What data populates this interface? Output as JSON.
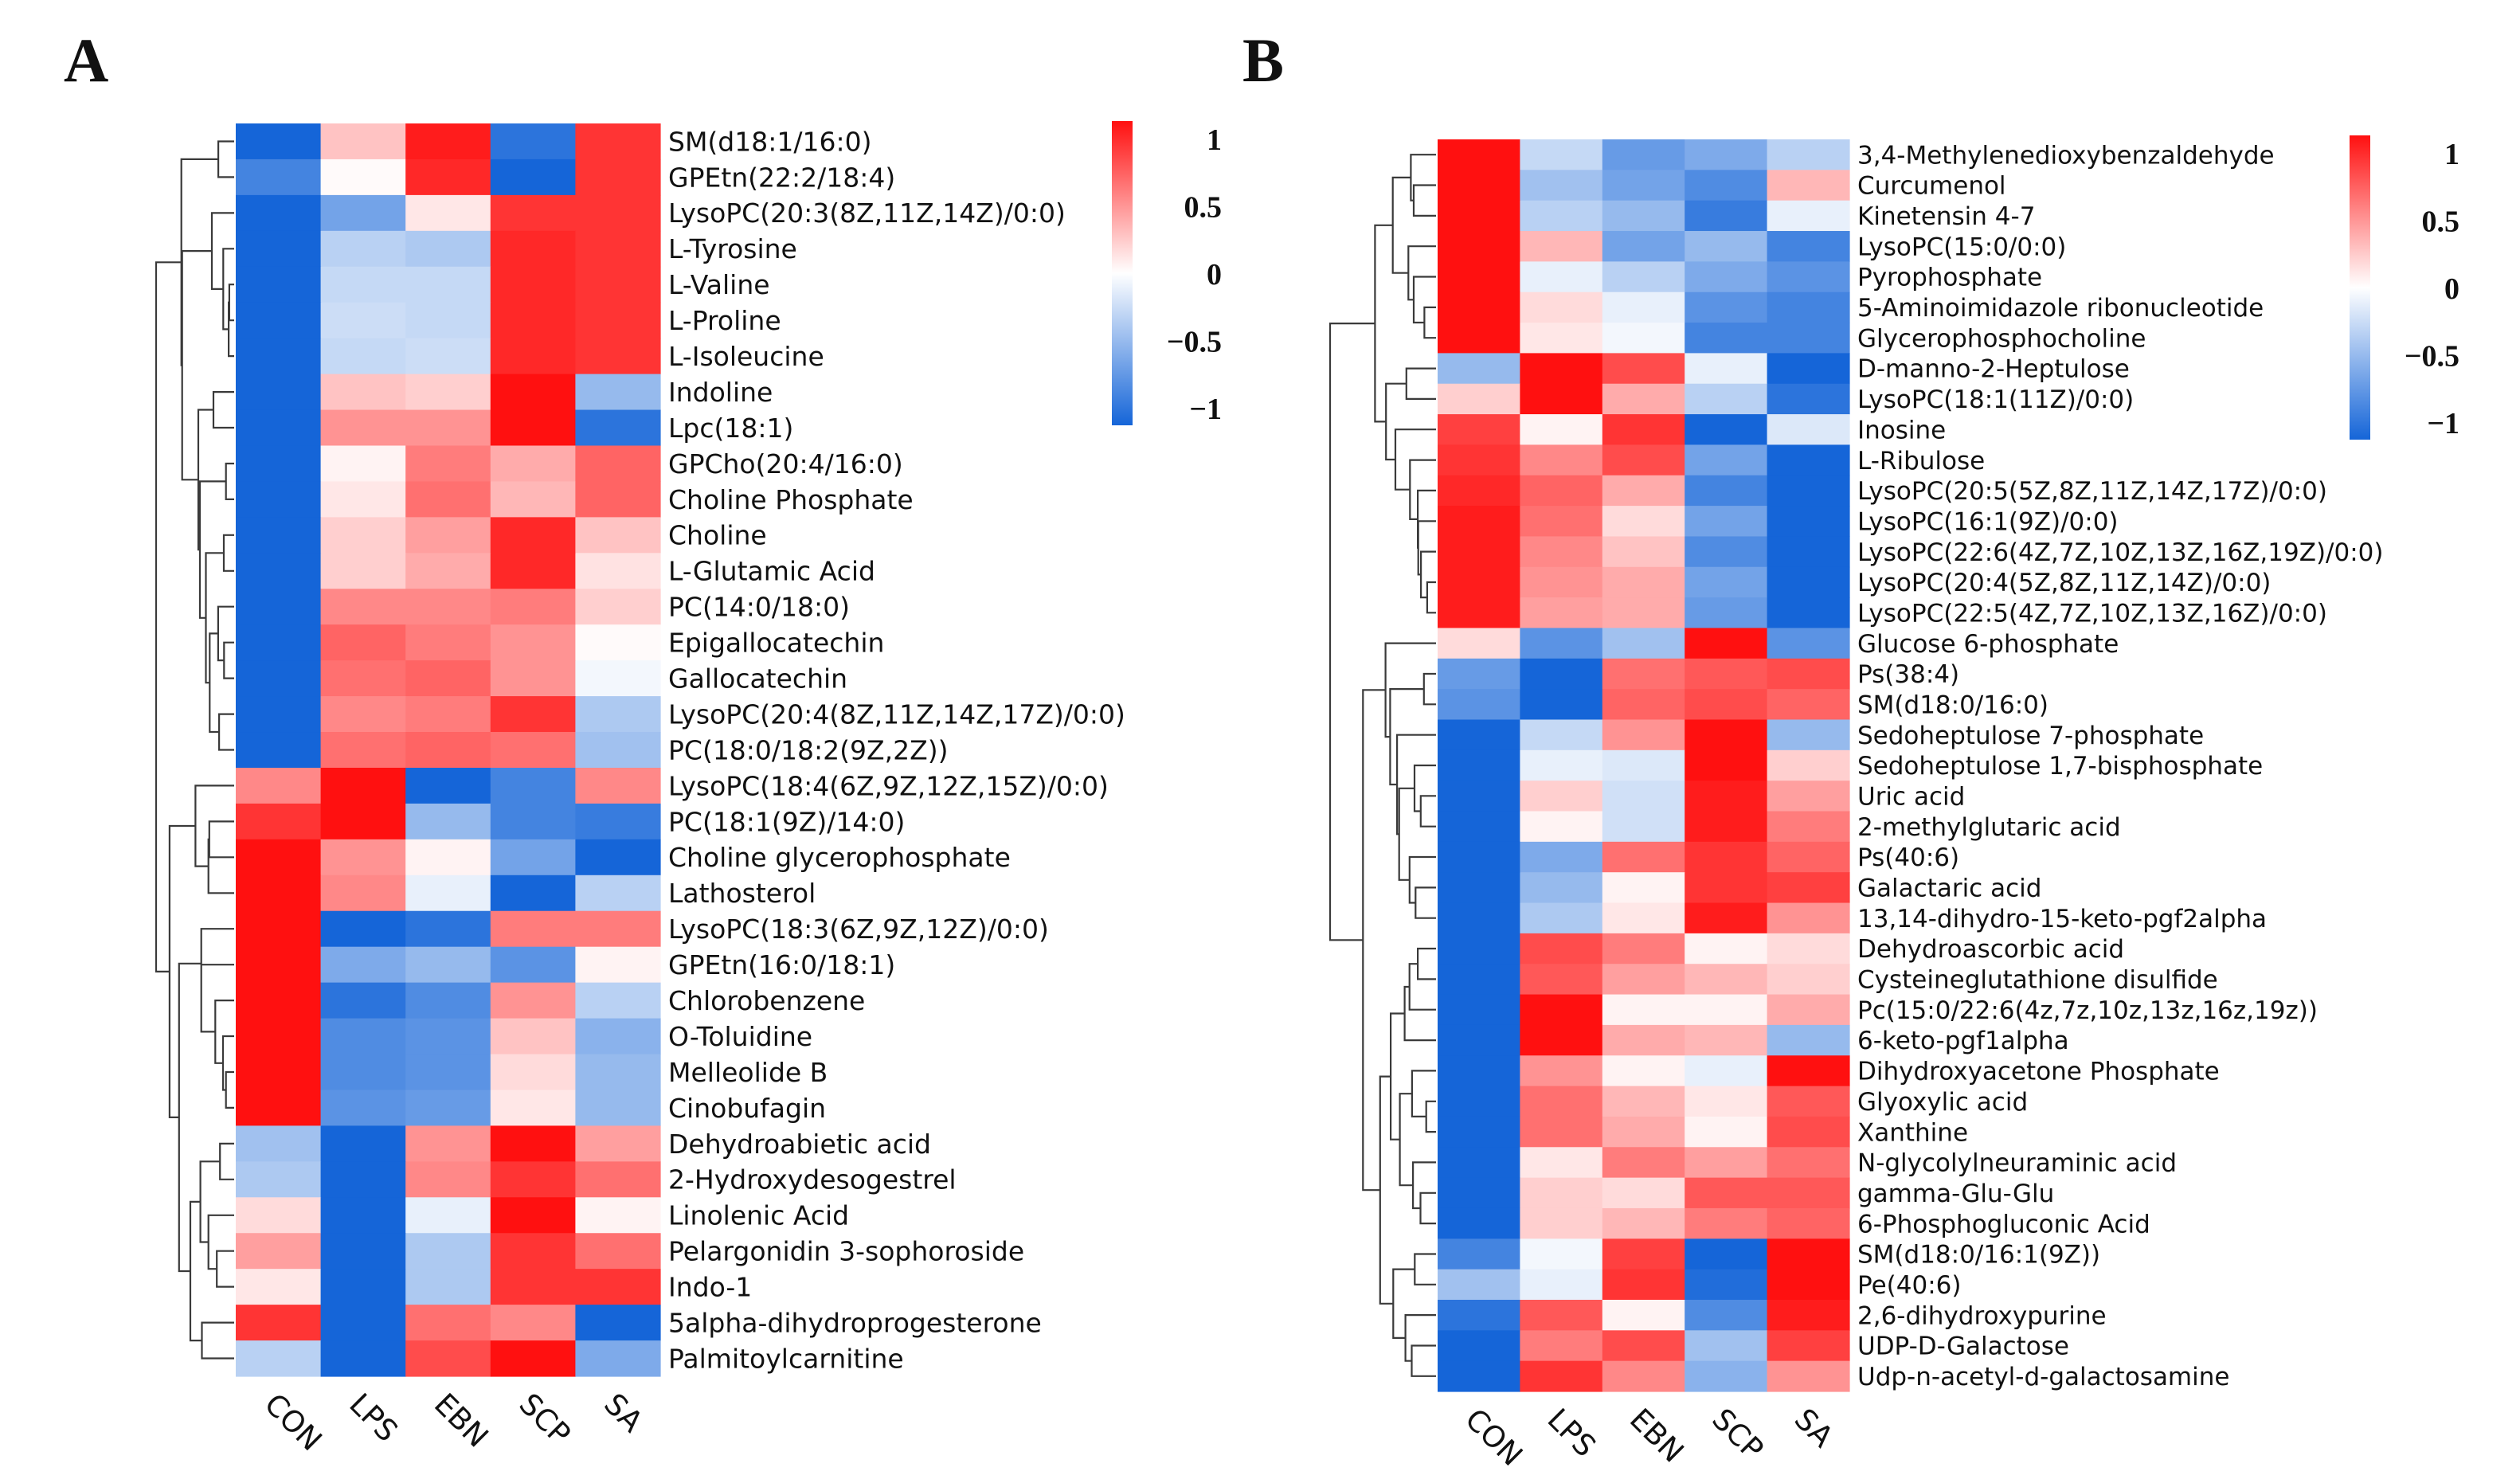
{
  "chart_data": [
    {
      "type": "heatmap",
      "panel": "A",
      "columns": [
        "CON",
        "LPS",
        "EBN",
        "SCP",
        "SA"
      ],
      "colorbar": {
        "range": [
          -1,
          1
        ],
        "ticks": [
          "1",
          "0.5",
          "0",
          "−0.5",
          "−1"
        ],
        "low_color": "#1565d8",
        "mid_color": "#ffffff",
        "high_color": "#ff1010"
      },
      "rows": [
        {
          "label": "SM(d18:1/16:0)",
          "values": [
            -1.0,
            0.25,
            0.95,
            -0.9,
            0.85
          ]
        },
        {
          "label": "GPEtn(22:2/18:4)",
          "values": [
            -0.8,
            0.02,
            0.9,
            -1.0,
            0.85
          ]
        },
        {
          "label": "LysoPC(20:3(8Z,11Z,14Z)/0:0)",
          "values": [
            -1.0,
            -0.6,
            0.1,
            0.85,
            0.85
          ]
        },
        {
          "label": "L-Tyrosine",
          "values": [
            -1.0,
            -0.3,
            -0.35,
            0.9,
            0.85
          ]
        },
        {
          "label": "L-Valine",
          "values": [
            -1.0,
            -0.25,
            -0.25,
            0.9,
            0.85
          ]
        },
        {
          "label": "L-Proline",
          "values": [
            -1.0,
            -0.22,
            -0.25,
            0.9,
            0.85
          ]
        },
        {
          "label": "L-Isoleucine",
          "values": [
            -1.0,
            -0.25,
            -0.22,
            0.9,
            0.85
          ]
        },
        {
          "label": "Indoline",
          "values": [
            -1.0,
            0.25,
            0.2,
            1.0,
            -0.45
          ]
        },
        {
          "label": "Lpc(18:1)",
          "values": [
            -1.0,
            0.45,
            0.45,
            1.0,
            -0.9
          ]
        },
        {
          "label": "GPCho(20:4/16:0)",
          "values": [
            -1.0,
            0.05,
            0.55,
            0.35,
            0.65
          ]
        },
        {
          "label": "Choline Phosphate",
          "values": [
            -1.0,
            0.1,
            0.6,
            0.3,
            0.65
          ]
        },
        {
          "label": "Choline",
          "values": [
            -1.0,
            0.2,
            0.4,
            0.9,
            0.25
          ]
        },
        {
          "label": "L-Glutamic Acid",
          "values": [
            -1.0,
            0.2,
            0.35,
            0.9,
            0.12
          ]
        },
        {
          "label": "PC(14:0/18:0)",
          "values": [
            -1.0,
            0.5,
            0.5,
            0.55,
            0.2
          ]
        },
        {
          "label": "Epigallocatechin",
          "values": [
            -1.0,
            0.65,
            0.55,
            0.45,
            0.02
          ]
        },
        {
          "label": "Gallocatechin",
          "values": [
            -1.0,
            0.6,
            0.65,
            0.45,
            -0.05
          ]
        },
        {
          "label": "LysoPC(20:4(8Z,11Z,14Z,17Z)/0:0)",
          "values": [
            -1.0,
            0.5,
            0.55,
            0.85,
            -0.35
          ]
        },
        {
          "label": "PC(18:0/18:2(9Z,2Z))",
          "values": [
            -1.0,
            0.6,
            0.65,
            0.6,
            -0.4
          ]
        },
        {
          "label": "LysoPC(18:4(6Z,9Z,12Z,15Z)/0:0)",
          "values": [
            0.5,
            1.0,
            -1.0,
            -0.8,
            0.5
          ]
        },
        {
          "label": "PC(18:1(9Z)/14:0)",
          "values": [
            0.85,
            1.0,
            -0.45,
            -0.8,
            -0.85
          ]
        },
        {
          "label": "Choline glycerophosphate",
          "values": [
            1.0,
            0.45,
            0.05,
            -0.6,
            -1.0
          ]
        },
        {
          "label": "Lathosterol",
          "values": [
            1.0,
            0.5,
            -0.1,
            -1.0,
            -0.3
          ]
        },
        {
          "label": "LysoPC(18:3(6Z,9Z,12Z)/0:0)",
          "values": [
            1.0,
            -1.0,
            -0.9,
            0.55,
            0.55
          ]
        },
        {
          "label": "GPEtn(16:0/18:1)",
          "values": [
            1.0,
            -0.55,
            -0.45,
            -0.7,
            0.05
          ]
        },
        {
          "label": "Chlorobenzene",
          "values": [
            1.0,
            -0.9,
            -0.75,
            0.45,
            -0.3
          ]
        },
        {
          "label": "O-Toluidine",
          "values": [
            1.0,
            -0.75,
            -0.7,
            0.25,
            -0.5
          ]
        },
        {
          "label": "Melleolide B",
          "values": [
            1.0,
            -0.75,
            -0.7,
            0.15,
            -0.45
          ]
        },
        {
          "label": "Cinobufagin",
          "values": [
            1.0,
            -0.7,
            -0.65,
            0.1,
            -0.45
          ]
        },
        {
          "label": "Dehydroabietic acid",
          "values": [
            -0.4,
            -1.0,
            0.45,
            1.0,
            0.4
          ]
        },
        {
          "label": "2-Hydroxydesogestrel",
          "values": [
            -0.35,
            -1.0,
            0.5,
            0.85,
            0.6
          ]
        },
        {
          "label": "Linolenic Acid",
          "values": [
            0.15,
            -1.0,
            -0.1,
            1.0,
            0.05
          ]
        },
        {
          "label": "Pelargonidin 3-sophoroside",
          "values": [
            0.4,
            -1.0,
            -0.35,
            0.85,
            0.6
          ]
        },
        {
          "label": "Indo-1",
          "values": [
            0.1,
            -1.0,
            -0.35,
            0.85,
            0.85
          ]
        },
        {
          "label": "5alpha-dihydroprogesterone",
          "values": [
            0.85,
            -1.0,
            0.6,
            0.5,
            -1.0
          ]
        },
        {
          "label": "Palmitoylcarnitine",
          "values": [
            -0.3,
            -1.0,
            0.75,
            1.0,
            -0.55
          ]
        }
      ]
    },
    {
      "type": "heatmap",
      "panel": "B",
      "columns": [
        "CON",
        "LPS",
        "EBN",
        "SCP",
        "SA"
      ],
      "colorbar": {
        "range": [
          -1,
          1
        ],
        "ticks": [
          "1",
          "0.5",
          "0",
          "−0.5",
          "−1"
        ],
        "low_color": "#1565d8",
        "mid_color": "#ffffff",
        "high_color": "#ff1010"
      },
      "rows": [
        {
          "label": "3,4-Methylenedioxybenzaldehyde",
          "values": [
            1.0,
            -0.25,
            -0.65,
            -0.55,
            -0.3
          ]
        },
        {
          "label": "Curcumenol",
          "values": [
            1.0,
            -0.4,
            -0.6,
            -0.75,
            0.3
          ]
        },
        {
          "label": "Kinetensin 4-7",
          "values": [
            1.0,
            -0.3,
            -0.45,
            -0.85,
            -0.1
          ]
        },
        {
          "label": "LysoPC(15:0/0:0)",
          "values": [
            1.0,
            0.3,
            -0.6,
            -0.45,
            -0.8
          ]
        },
        {
          "label": "Pyrophosphate",
          "values": [
            1.0,
            -0.1,
            -0.3,
            -0.55,
            -0.7
          ]
        },
        {
          "label": "5-Aminoimidazole ribonucleotide",
          "values": [
            1.0,
            0.15,
            -0.1,
            -0.7,
            -0.8
          ]
        },
        {
          "label": "Glycerophosphocholine",
          "values": [
            1.0,
            0.1,
            -0.05,
            -0.8,
            -0.8
          ]
        },
        {
          "label": "D-manno-2-Heptulose",
          "values": [
            -0.45,
            1.0,
            0.75,
            -0.1,
            -1.0
          ]
        },
        {
          "label": "LysoPC(18:1(11Z)/0:0)",
          "values": [
            0.2,
            1.0,
            0.35,
            -0.3,
            -0.9
          ]
        },
        {
          "label": "Inosine",
          "values": [
            0.8,
            0.05,
            0.85,
            -1.0,
            -0.15
          ]
        },
        {
          "label": "L-Ribulose",
          "values": [
            0.85,
            0.5,
            0.75,
            -0.6,
            -1.0
          ]
        },
        {
          "label": "LysoPC(20:5(5Z,8Z,11Z,14Z,17Z)/0:0)",
          "values": [
            0.9,
            0.65,
            0.35,
            -0.8,
            -1.0
          ]
        },
        {
          "label": "LysoPC(16:1(9Z)/0:0)",
          "values": [
            0.95,
            0.6,
            0.15,
            -0.6,
            -1.0
          ]
        },
        {
          "label": "LysoPC(22:6(4Z,7Z,10Z,13Z,16Z,19Z)/0:0)",
          "values": [
            0.95,
            0.5,
            0.25,
            -0.75,
            -1.0
          ]
        },
        {
          "label": "LysoPC(20:4(5Z,8Z,11Z,14Z)/0:0)",
          "values": [
            0.95,
            0.45,
            0.35,
            -0.6,
            -1.0
          ]
        },
        {
          "label": "LysoPC(22:5(4Z,7Z,10Z,13Z,16Z)/0:0)",
          "values": [
            0.95,
            0.4,
            0.35,
            -0.65,
            -1.0
          ]
        },
        {
          "label": "Glucose 6-phosphate",
          "values": [
            0.15,
            -0.7,
            -0.4,
            1.0,
            -0.7
          ]
        },
        {
          "label": "Ps(38:4)",
          "values": [
            -0.65,
            -1.0,
            0.6,
            0.7,
            0.75
          ]
        },
        {
          "label": "SM(d18:0/16:0)",
          "values": [
            -0.7,
            -1.0,
            0.65,
            0.75,
            0.65
          ]
        },
        {
          "label": "Sedoheptulose 7-phosphate",
          "values": [
            -1.0,
            -0.25,
            0.45,
            1.0,
            -0.45
          ]
        },
        {
          "label": "Sedoheptulose 1,7-bisphosphate",
          "values": [
            -1.0,
            -0.1,
            -0.15,
            1.0,
            0.2
          ]
        },
        {
          "label": "Uric acid",
          "values": [
            -1.0,
            0.2,
            -0.2,
            0.95,
            0.4
          ]
        },
        {
          "label": "2-methylglutaric acid",
          "values": [
            -1.0,
            0.05,
            -0.2,
            0.95,
            0.55
          ]
        },
        {
          "label": "Ps(40:6)",
          "values": [
            -1.0,
            -0.55,
            0.6,
            0.85,
            0.65
          ]
        },
        {
          "label": "Galactaric acid",
          "values": [
            -1.0,
            -0.45,
            0.05,
            0.85,
            0.8
          ]
        },
        {
          "label": "13,14-dihydro-15-keto-pgf2alpha",
          "values": [
            -1.0,
            -0.35,
            0.1,
            0.95,
            0.45
          ]
        },
        {
          "label": "Dehydroascorbic acid",
          "values": [
            -1.0,
            0.75,
            0.55,
            0.05,
            0.15
          ]
        },
        {
          "label": "Cysteineglutathione disulfide",
          "values": [
            -1.0,
            0.7,
            0.4,
            0.3,
            0.2
          ]
        },
        {
          "label": "Pc(15:0/22:6(4z,7z,10z,13z,16z,19z))",
          "values": [
            -1.0,
            1.0,
            0.05,
            0.05,
            0.35
          ]
        },
        {
          "label": "6-keto-pgf1alpha",
          "values": [
            -1.0,
            1.0,
            0.35,
            0.3,
            -0.45
          ]
        },
        {
          "label": "Dihydroxyacetone Phosphate",
          "values": [
            -1.0,
            0.45,
            0.05,
            -0.1,
            1.0
          ]
        },
        {
          "label": "Glyoxylic acid",
          "values": [
            -1.0,
            0.6,
            0.3,
            0.1,
            0.7
          ]
        },
        {
          "label": "Xanthine",
          "values": [
            -1.0,
            0.6,
            0.35,
            0.05,
            0.75
          ]
        },
        {
          "label": "N-glycolylneuraminic acid",
          "values": [
            -1.0,
            0.1,
            0.55,
            0.4,
            0.6
          ]
        },
        {
          "label": "gamma-Glu-Glu",
          "values": [
            -1.0,
            0.2,
            0.15,
            0.7,
            0.7
          ]
        },
        {
          "label": "6-Phosphogluconic Acid",
          "values": [
            -1.0,
            0.2,
            0.3,
            0.55,
            0.65
          ]
        },
        {
          "label": "SM(d18:0/16:1(9Z))",
          "values": [
            -0.8,
            -0.05,
            0.8,
            -1.0,
            1.0
          ]
        },
        {
          "label": "Pe(40:6)",
          "values": [
            -0.4,
            -0.1,
            0.85,
            -0.95,
            1.0
          ]
        },
        {
          "label": "2,6-dihydroxypurine",
          "values": [
            -0.9,
            0.7,
            0.05,
            -0.75,
            0.95
          ]
        },
        {
          "label": "UDP-D-Galactose",
          "values": [
            -1.0,
            0.55,
            0.75,
            -0.4,
            0.8
          ]
        },
        {
          "label": "Udp-n-acetyl-d-galactosamine",
          "values": [
            -1.0,
            0.85,
            0.5,
            -0.5,
            0.45
          ]
        }
      ]
    }
  ]
}
